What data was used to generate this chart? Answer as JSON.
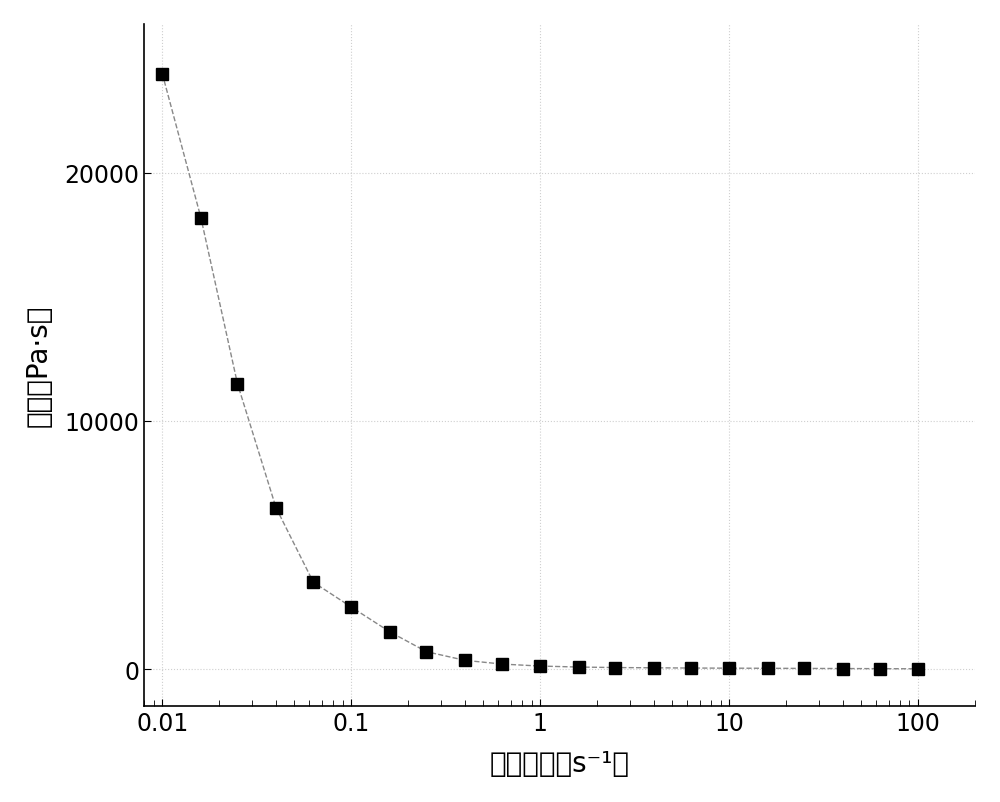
{
  "x": [
    0.01,
    0.016,
    0.025,
    0.04,
    0.063,
    0.1,
    0.16,
    0.25,
    0.4,
    0.63,
    1.0,
    1.6,
    2.5,
    4.0,
    6.3,
    10.0,
    16.0,
    25.0,
    40.0,
    63.0,
    100.0
  ],
  "y": [
    24000,
    18200,
    11500,
    6500,
    3500,
    2500,
    1500,
    700,
    350,
    200,
    120,
    80,
    60,
    50,
    40,
    35,
    30,
    25,
    20,
    15,
    10
  ],
  "xlabel": "剪切速率（s⁻¹）",
  "ylabel": "黏度（Pa·s）",
  "xlim": [
    0.008,
    200
  ],
  "ylim": [
    -1500,
    26000
  ],
  "yticks": [
    0,
    10000,
    20000
  ],
  "xticks": [
    0.01,
    0.1,
    1,
    10,
    100
  ],
  "xtick_labels": [
    "0.01",
    "0.1",
    "1",
    "10",
    "100"
  ],
  "line_color": "#888888",
  "marker_color": "#000000",
  "marker_size": 8,
  "line_style": "--",
  "background_color": "#ffffff",
  "grid_color": "#bbbbbb",
  "xlabel_fontsize": 20,
  "ylabel_fontsize": 20,
  "tick_fontsize": 17
}
